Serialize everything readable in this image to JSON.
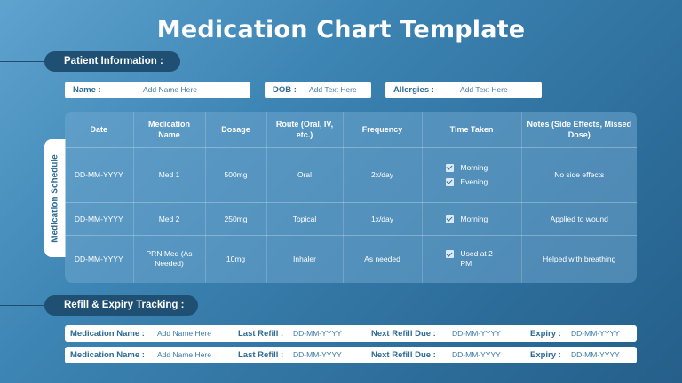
{
  "title": "Medication Chart Template",
  "patient_section": {
    "label": "Patient Information :",
    "fields": [
      {
        "label": "Name :",
        "value": "Add Name Here"
      },
      {
        "label": "DOB :",
        "value": "Add Text Here"
      },
      {
        "label": "Allergies :",
        "value": "Add Text Here"
      }
    ]
  },
  "schedule": {
    "side_label": "Medication Schedule",
    "headers": [
      "Date",
      "Medication Name",
      "Dosage",
      "Route (Oral, IV, etc.)",
      "Frequency",
      "Time Taken",
      "Notes (Side Effects, Missed Dose)"
    ],
    "rows": [
      {
        "date": "DD-MM-YYYY",
        "medication": "Med 1",
        "dosage": "500mg",
        "route": "Oral",
        "frequency": "2x/day",
        "time_taken": [
          "Morning",
          "Evening"
        ],
        "notes": "No side effects"
      },
      {
        "date": "DD-MM-YYYY",
        "medication": "Med 2",
        "dosage": "250mg",
        "route": "Topical",
        "frequency": "1x/day",
        "time_taken": [
          "Morning"
        ],
        "notes": "Applied to wound"
      },
      {
        "date": "DD-MM-YYYY",
        "medication": "PRN Med (As Needed)",
        "dosage": "10mg",
        "route": "Inhaler",
        "frequency": "As needed",
        "time_taken": [
          "Used at 2 PM"
        ],
        "notes": "Helped with breathing"
      }
    ]
  },
  "refill_section": {
    "label": "Refill & Expiry Tracking :",
    "rows": [
      {
        "med_label": "Medication Name :",
        "med_value": "Add Name Here",
        "last_label": "Last Refill :",
        "last_value": "DD-MM-YYYY",
        "next_label": "Next Refill Due :",
        "next_value": "DD-MM-YYYY",
        "expiry_label": "Expiry :",
        "expiry_value": "DD-MM-YYYY"
      },
      {
        "med_label": "Medication Name :",
        "med_value": "Add Name Here",
        "last_label": "Last Refill :",
        "last_value": "DD-MM-YYYY",
        "next_label": "Next Refill Due :",
        "next_value": "DD-MM-YYYY",
        "expiry_label": "Expiry :",
        "expiry_value": "DD-MM-YYYY"
      }
    ]
  },
  "colors": {
    "accent_dark": "#1f4f73",
    "label_blue": "#2d6a94",
    "background": "#3d85b4"
  }
}
